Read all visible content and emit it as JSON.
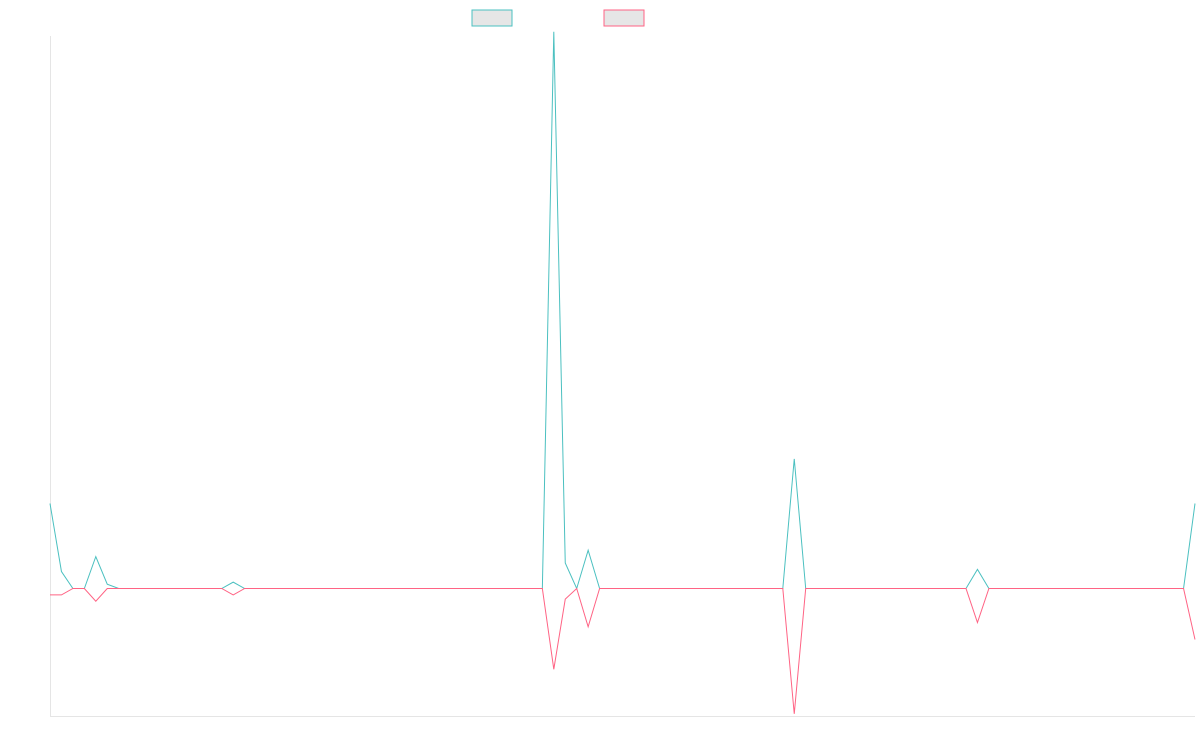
{
  "chart_data": {
    "type": "line",
    "title": "",
    "xlabel": "",
    "ylabel": "",
    "x_count": 101,
    "ylim": [
      -60,
      260
    ],
    "grid": false,
    "legend_position": "top-center",
    "series": [
      {
        "name": "",
        "color": "#4bc0c0",
        "values": [
          40,
          8,
          0,
          0,
          15,
          2,
          0,
          0,
          0,
          0,
          0,
          0,
          0,
          0,
          0,
          0,
          3,
          0,
          0,
          0,
          0,
          0,
          0,
          0,
          0,
          0,
          0,
          0,
          0,
          0,
          0,
          0,
          0,
          0,
          0,
          0,
          0,
          0,
          0,
          0,
          0,
          0,
          0,
          0,
          262,
          12,
          0,
          18,
          0,
          0,
          0,
          0,
          0,
          0,
          0,
          0,
          0,
          0,
          0,
          0,
          0,
          0,
          0,
          0,
          0,
          61,
          0,
          0,
          0,
          0,
          0,
          0,
          0,
          0,
          0,
          0,
          0,
          0,
          0,
          0,
          0,
          9,
          0,
          0,
          0,
          0,
          0,
          0,
          0,
          0,
          0,
          0,
          0,
          0,
          0,
          0,
          0,
          0,
          0,
          0,
          40
        ]
      },
      {
        "name": "",
        "color": "#ff6384",
        "values": [
          -3,
          -3,
          0,
          0,
          -6,
          0,
          0,
          0,
          0,
          0,
          0,
          0,
          0,
          0,
          0,
          0,
          -3,
          0,
          0,
          0,
          0,
          0,
          0,
          0,
          0,
          0,
          0,
          0,
          0,
          0,
          0,
          0,
          0,
          0,
          0,
          0,
          0,
          0,
          0,
          0,
          0,
          0,
          0,
          0,
          -38,
          -5,
          0,
          -18,
          0,
          0,
          0,
          0,
          0,
          0,
          0,
          0,
          0,
          0,
          0,
          0,
          0,
          0,
          0,
          0,
          0,
          -59,
          0,
          0,
          0,
          0,
          0,
          0,
          0,
          0,
          0,
          0,
          0,
          0,
          0,
          0,
          0,
          -16,
          0,
          0,
          0,
          0,
          0,
          0,
          0,
          0,
          0,
          0,
          0,
          0,
          0,
          0,
          0,
          0,
          0,
          0,
          -24
        ]
      }
    ]
  }
}
